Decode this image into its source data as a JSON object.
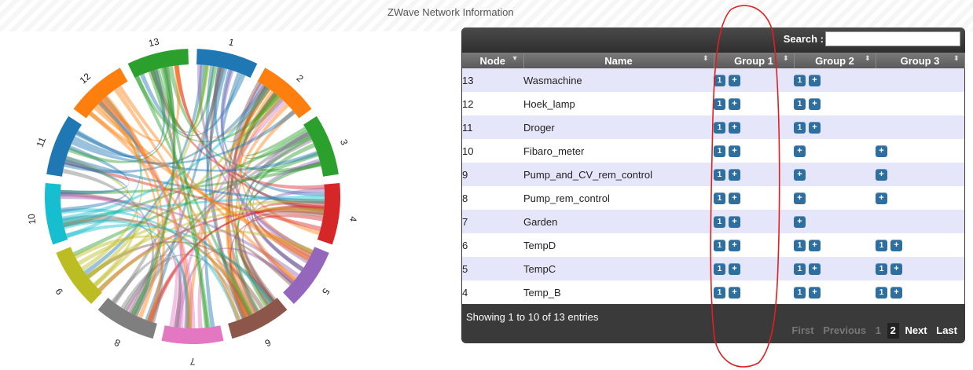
{
  "page": {
    "title": "ZWave Network Information"
  },
  "chord": {
    "groups": [
      {
        "label": "1",
        "color": "#1f77b4"
      },
      {
        "label": "2",
        "color": "#ff7f0e"
      },
      {
        "label": "3",
        "color": "#2ca02c"
      },
      {
        "label": "4",
        "color": "#d62728"
      },
      {
        "label": "5",
        "color": "#9467bd"
      },
      {
        "label": "6",
        "color": "#8c564b"
      },
      {
        "label": "7",
        "color": "#e377c2"
      },
      {
        "label": "8",
        "color": "#7f7f7f"
      },
      {
        "label": "9",
        "color": "#bcbd22"
      },
      {
        "label": "10",
        "color": "#17becf"
      },
      {
        "label": "11",
        "color": "#1f77b4"
      },
      {
        "label": "12",
        "color": "#ff7f0e"
      },
      {
        "label": "13",
        "color": "#2ca02c"
      }
    ]
  },
  "table": {
    "search_label": "Search :",
    "search_value": "",
    "columns": [
      "Node",
      "Name",
      "Group 1",
      "Group 2",
      "Group 3"
    ],
    "rows": [
      {
        "node": "13",
        "name": "Wasmachine",
        "g1": [
          "1",
          "+"
        ],
        "g2": [
          "1",
          "+"
        ],
        "g3": []
      },
      {
        "node": "12",
        "name": "Hoek_lamp",
        "g1": [
          "1",
          "+"
        ],
        "g2": [
          "1",
          "+"
        ],
        "g3": []
      },
      {
        "node": "11",
        "name": "Droger",
        "g1": [
          "1",
          "+"
        ],
        "g2": [
          "1",
          "+"
        ],
        "g3": []
      },
      {
        "node": "10",
        "name": "Fibaro_meter",
        "g1": [
          "1",
          "+"
        ],
        "g2": [
          "+"
        ],
        "g3": [
          "+"
        ]
      },
      {
        "node": "9",
        "name": "Pump_and_CV_rem_control",
        "g1": [
          "1",
          "+"
        ],
        "g2": [
          "+"
        ],
        "g3": [
          "+"
        ]
      },
      {
        "node": "8",
        "name": "Pump_rem_control",
        "g1": [
          "1",
          "+"
        ],
        "g2": [
          "+"
        ],
        "g3": [
          "+"
        ]
      },
      {
        "node": "7",
        "name": "Garden",
        "g1": [
          "1",
          "+"
        ],
        "g2": [
          "+"
        ],
        "g3": []
      },
      {
        "node": "6",
        "name": "TempD",
        "g1": [
          "1",
          "+"
        ],
        "g2": [
          "1",
          "+"
        ],
        "g3": [
          "1",
          "+"
        ]
      },
      {
        "node": "5",
        "name": "TempC",
        "g1": [
          "1",
          "+"
        ],
        "g2": [
          "1",
          "+"
        ],
        "g3": [
          "1",
          "+"
        ]
      },
      {
        "node": "4",
        "name": "Temp_B",
        "g1": [
          "1",
          "+"
        ],
        "g2": [
          "1",
          "+"
        ],
        "g3": [
          "1",
          "+"
        ]
      }
    ],
    "info": "Showing 1 to 10 of 13 entries",
    "pager": {
      "first": "First",
      "previous": "Previous",
      "page1": "1",
      "page2": "2",
      "next": "Next",
      "last": "Last"
    }
  }
}
